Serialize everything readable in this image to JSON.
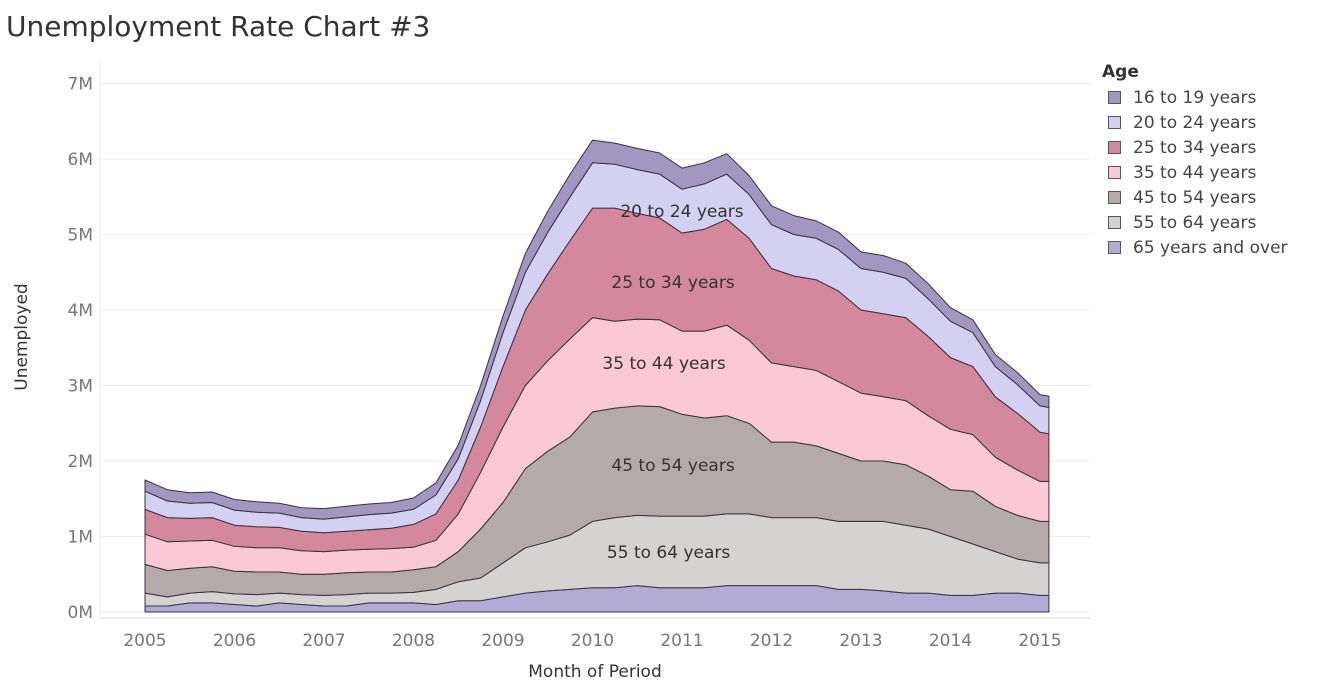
{
  "title": "Unemployment Rate Chart #3",
  "chart_data": {
    "type": "area",
    "stacked": true,
    "title": "Unemployment Rate Chart #3",
    "xlabel": "Month of Period",
    "ylabel": "Unemployed",
    "x_ticks": [
      "2005",
      "2006",
      "2007",
      "2008",
      "2009",
      "2010",
      "2011",
      "2012",
      "2013",
      "2014",
      "2015"
    ],
    "y_ticks": [
      "0M",
      "1M",
      "2M",
      "3M",
      "4M",
      "5M",
      "6M",
      "7M"
    ],
    "x_range": [
      2005.0,
      2015.1
    ],
    "ylim": [
      0,
      7.4
    ],
    "x": [
      2005.0,
      2005.25,
      2005.5,
      2005.75,
      2006.0,
      2006.25,
      2006.5,
      2006.75,
      2007.0,
      2007.25,
      2007.5,
      2007.75,
      2008.0,
      2008.25,
      2008.5,
      2008.75,
      2009.0,
      2009.25,
      2009.5,
      2009.75,
      2010.0,
      2010.25,
      2010.5,
      2010.75,
      2011.0,
      2011.25,
      2011.5,
      2011.75,
      2012.0,
      2012.25,
      2012.5,
      2012.75,
      2013.0,
      2013.25,
      2013.5,
      2013.75,
      2014.0,
      2014.25,
      2014.5,
      2014.75,
      2015.0,
      2015.1
    ],
    "series": [
      {
        "name": "65 years and over",
        "color": "#b2abd6",
        "values": [
          0.08,
          0.08,
          0.12,
          0.12,
          0.1,
          0.08,
          0.12,
          0.1,
          0.08,
          0.08,
          0.12,
          0.12,
          0.12,
          0.1,
          0.15,
          0.15,
          0.2,
          0.25,
          0.28,
          0.3,
          0.32,
          0.32,
          0.35,
          0.32,
          0.32,
          0.32,
          0.35,
          0.35,
          0.35,
          0.35,
          0.35,
          0.3,
          0.3,
          0.28,
          0.25,
          0.25,
          0.22,
          0.22,
          0.25,
          0.25,
          0.22,
          0.22
        ]
      },
      {
        "name": "55 to 64 years",
        "color": "#d5d2d2",
        "values": [
          0.17,
          0.12,
          0.13,
          0.15,
          0.14,
          0.15,
          0.13,
          0.13,
          0.14,
          0.15,
          0.13,
          0.13,
          0.14,
          0.2,
          0.25,
          0.3,
          0.45,
          0.6,
          0.65,
          0.72,
          0.88,
          0.93,
          0.93,
          0.95,
          0.95,
          0.95,
          0.95,
          0.95,
          0.9,
          0.9,
          0.9,
          0.9,
          0.9,
          0.92,
          0.9,
          0.85,
          0.78,
          0.68,
          0.55,
          0.45,
          0.43,
          0.43
        ]
      },
      {
        "name": "45 to 54 years",
        "color": "#b4aaa9",
        "values": [
          0.38,
          0.35,
          0.33,
          0.33,
          0.3,
          0.3,
          0.28,
          0.27,
          0.28,
          0.29,
          0.28,
          0.28,
          0.3,
          0.3,
          0.4,
          0.65,
          0.8,
          1.05,
          1.2,
          1.3,
          1.45,
          1.45,
          1.45,
          1.45,
          1.35,
          1.3,
          1.3,
          1.2,
          1.0,
          1.0,
          0.95,
          0.9,
          0.8,
          0.8,
          0.8,
          0.7,
          0.62,
          0.7,
          0.6,
          0.58,
          0.55,
          0.55
        ]
      },
      {
        "name": "35 to 44 years",
        "color": "#fbc8d5",
        "values": [
          0.4,
          0.38,
          0.36,
          0.35,
          0.33,
          0.32,
          0.32,
          0.31,
          0.3,
          0.3,
          0.3,
          0.31,
          0.3,
          0.35,
          0.5,
          0.75,
          1.0,
          1.1,
          1.2,
          1.3,
          1.25,
          1.15,
          1.15,
          1.15,
          1.1,
          1.15,
          1.2,
          1.1,
          1.05,
          1.0,
          1.0,
          0.95,
          0.9,
          0.85,
          0.85,
          0.8,
          0.8,
          0.75,
          0.65,
          0.6,
          0.53,
          0.53
        ]
      },
      {
        "name": "25 to 34 years",
        "color": "#d3889d",
        "values": [
          0.33,
          0.32,
          0.3,
          0.3,
          0.28,
          0.28,
          0.27,
          0.26,
          0.25,
          0.25,
          0.26,
          0.27,
          0.3,
          0.35,
          0.45,
          0.6,
          0.8,
          1.0,
          1.15,
          1.3,
          1.45,
          1.5,
          1.4,
          1.35,
          1.3,
          1.35,
          1.4,
          1.35,
          1.25,
          1.2,
          1.2,
          1.2,
          1.1,
          1.1,
          1.1,
          1.05,
          0.95,
          0.9,
          0.8,
          0.75,
          0.65,
          0.63
        ]
      },
      {
        "name": "20 to 24 years",
        "color": "#d4d0f1",
        "values": [
          0.24,
          0.22,
          0.2,
          0.2,
          0.2,
          0.19,
          0.19,
          0.18,
          0.18,
          0.19,
          0.2,
          0.2,
          0.2,
          0.25,
          0.28,
          0.35,
          0.45,
          0.5,
          0.55,
          0.58,
          0.6,
          0.58,
          0.58,
          0.58,
          0.58,
          0.6,
          0.6,
          0.58,
          0.58,
          0.55,
          0.55,
          0.55,
          0.55,
          0.55,
          0.52,
          0.5,
          0.48,
          0.45,
          0.4,
          0.38,
          0.35,
          0.35
        ]
      },
      {
        "name": "16 to 19 years",
        "color": "#a297c0",
        "values": [
          0.15,
          0.15,
          0.14,
          0.14,
          0.14,
          0.14,
          0.13,
          0.13,
          0.14,
          0.14,
          0.14,
          0.14,
          0.15,
          0.16,
          0.18,
          0.2,
          0.22,
          0.25,
          0.28,
          0.3,
          0.3,
          0.28,
          0.28,
          0.28,
          0.28,
          0.28,
          0.27,
          0.25,
          0.25,
          0.25,
          0.23,
          0.23,
          0.22,
          0.22,
          0.2,
          0.2,
          0.18,
          0.17,
          0.16,
          0.16,
          0.15,
          0.15
        ]
      }
    ],
    "band_labels": [
      {
        "text": "20 to 24 years",
        "series": "20 to 24 years",
        "x": 2011.0
      },
      {
        "text": "25 to 34 years",
        "series": "25 to 34 years",
        "x": 2010.9
      },
      {
        "text": "35 to 44 years",
        "series": "35 to 44 years",
        "x": 2010.8
      },
      {
        "text": "45 to 54 years",
        "series": "45 to 54 years",
        "x": 2010.9
      },
      {
        "text": "55 to 64 years",
        "series": "55 to 64 years",
        "x": 2010.85
      }
    ],
    "legend": {
      "title": "Age",
      "position": "top-right",
      "items": [
        {
          "label": "16 to 19 years",
          "color": "#a297c0"
        },
        {
          "label": "20 to 24 years",
          "color": "#d4d0f1"
        },
        {
          "label": "25 to 34 years",
          "color": "#d3889d"
        },
        {
          "label": "35 to 44 years",
          "color": "#fbc8d5"
        },
        {
          "label": "45 to 54 years",
          "color": "#b4aaa9"
        },
        {
          "label": "55 to 64 years",
          "color": "#d5d2d2"
        },
        {
          "label": "65 years and over",
          "color": "#b2abd6"
        }
      ]
    },
    "grid": true
  }
}
